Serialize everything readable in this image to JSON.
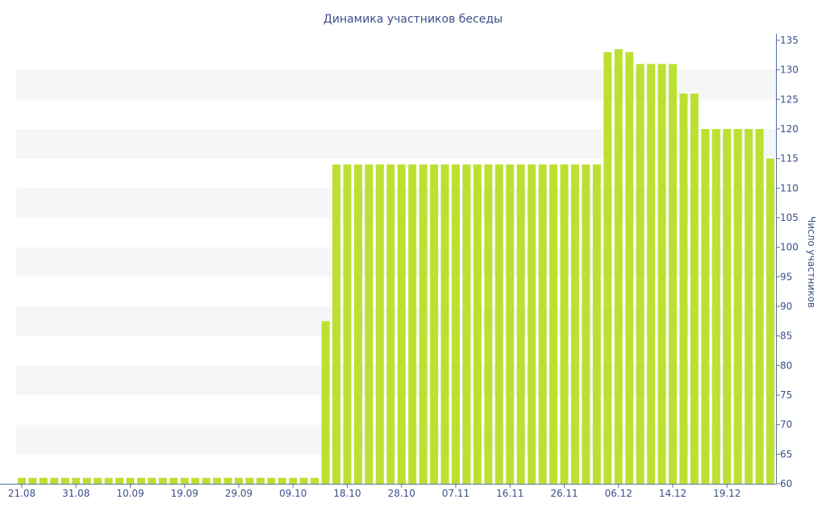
{
  "chart_data": {
    "type": "bar",
    "title": "Динамика участников беседы",
    "xlabel": "",
    "ylabel": "Число участников",
    "ylim": [
      60,
      135
    ],
    "yticks": [
      60,
      65,
      70,
      75,
      80,
      85,
      90,
      95,
      100,
      105,
      110,
      115,
      120,
      125,
      130,
      135
    ],
    "y_axis_position": "right",
    "grid": "alternating horizontal bands",
    "x_tick_labels": [
      {
        "index": 0,
        "label": "21.08"
      },
      {
        "index": 5,
        "label": "31.08"
      },
      {
        "index": 10,
        "label": "10.09"
      },
      {
        "index": 15,
        "label": "19.09"
      },
      {
        "index": 20,
        "label": "29.09"
      },
      {
        "index": 25,
        "label": "09.10"
      },
      {
        "index": 30,
        "label": "18.10"
      },
      {
        "index": 35,
        "label": "28.10"
      },
      {
        "index": 40,
        "label": "07.11"
      },
      {
        "index": 45,
        "label": "16.11"
      },
      {
        "index": 50,
        "label": "26.11"
      },
      {
        "index": 55,
        "label": "06.12"
      },
      {
        "index": 60,
        "label": "14.12"
      },
      {
        "index": 65,
        "label": "19.12"
      }
    ],
    "values": [
      61,
      61,
      61,
      61,
      61,
      61,
      61,
      61,
      61,
      61,
      61,
      61,
      61,
      61,
      61,
      61,
      61,
      61,
      61,
      61,
      61,
      61,
      61,
      61,
      61,
      61,
      61,
      61,
      87.5,
      114,
      114,
      114,
      114,
      114,
      114,
      114,
      114,
      114,
      114,
      114,
      114,
      114,
      114,
      114,
      114,
      114,
      114,
      114,
      114,
      114,
      114,
      114,
      114,
      114,
      133,
      133.5,
      133,
      131,
      131,
      131,
      131,
      126,
      126,
      120,
      120,
      120,
      120,
      120,
      120,
      115
    ],
    "colors": {
      "bar": "#bce032",
      "band": "#f6f6f6",
      "axis": "#5a6fa6",
      "text": "#3b4f8a"
    }
  }
}
